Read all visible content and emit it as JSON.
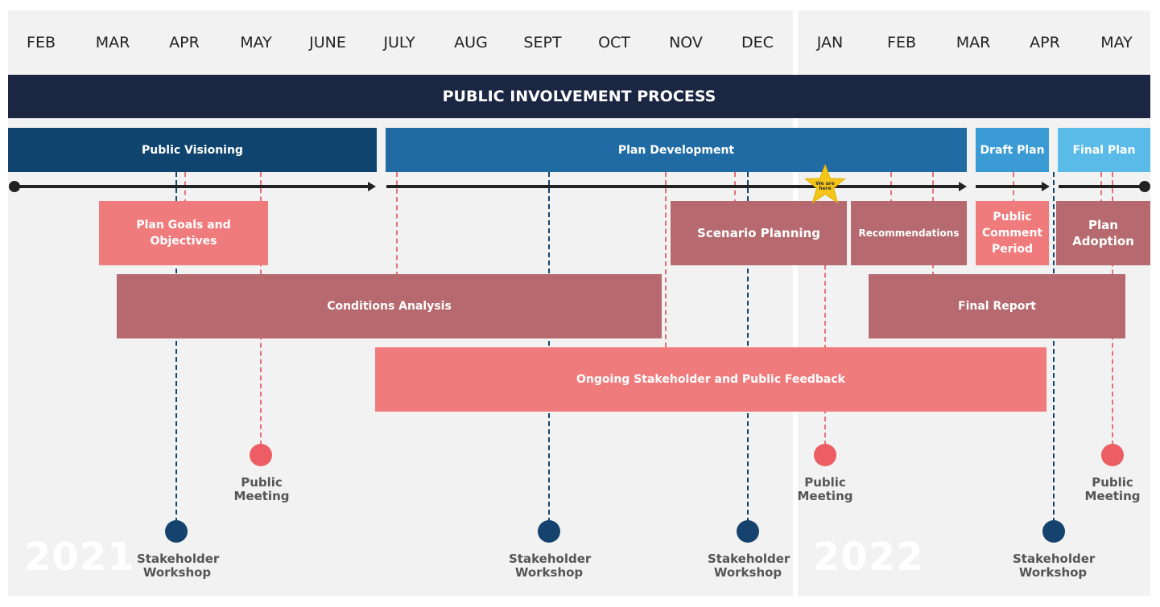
{
  "months_2021": [
    "FEB",
    "MAR",
    "APR",
    "MAY",
    "JUNE",
    "JULY",
    "AUG",
    "SEPT",
    "OCT",
    "NOV",
    "DEC"
  ],
  "months_2022": [
    "JAN",
    "FEB",
    "MAR",
    "APR",
    "MAY"
  ],
  "title": "PUBLIC INVOLVEMENT PROCESS",
  "phases": {
    "visioning": "Public Visioning",
    "development": "Plan Development",
    "draft": "Draft Plan",
    "final": "Final Plan"
  },
  "tasks": {
    "goals": "Plan Goals and Objectives",
    "scenario": "Scenario Planning",
    "recommendations": "Recommendations",
    "comment": "Public Comment Period",
    "adoption": "Plan Adoption",
    "conditions": "Conditions Analysis",
    "final_report": "Final Report",
    "feedback": "Ongoing Stakeholder and Public Feedback"
  },
  "marker": {
    "we_are_here": "We are here"
  },
  "events": {
    "public_meeting": "Public Meeting",
    "stakeholder_workshop": "Stakeholder Workshop"
  },
  "years": {
    "y2021": "2021",
    "y2022": "2022"
  },
  "colors": {
    "navy_title": "#1b2643",
    "phase_dark": "#0e446d",
    "phase_mid": "#216ba5",
    "phase_light": "#3a9bd5",
    "phase_sky": "#5bbbe8",
    "task_salmon": "#f07b7c",
    "task_rose": "#b66a6f",
    "star": "#f5c518"
  }
}
